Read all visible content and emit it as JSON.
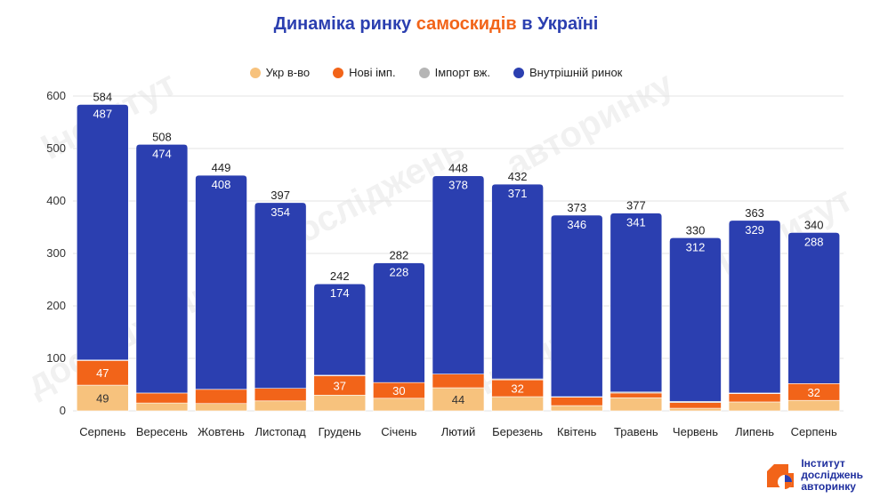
{
  "title": {
    "part1": "Динаміка ринку ",
    "accent": "самоскидів",
    "part2": " в Україні"
  },
  "legend": [
    {
      "label": "Укр в-во",
      "color": "#f7c27d"
    },
    {
      "label": "Нові імп.",
      "color": "#f26419"
    },
    {
      "label": "Імпорт вж.",
      "color": "#b5b5b5"
    },
    {
      "label": "Внутрішній ринок",
      "color": "#2b3fb0"
    }
  ],
  "logo": {
    "line1": "Інститут",
    "line2": "досліджень",
    "line3": "авторинку"
  },
  "chart_data": {
    "type": "bar",
    "stacked": true,
    "categories": [
      "Серпень",
      "Вересень",
      "Жовтень",
      "Листопад",
      "Грудень",
      "Січень",
      "Лютий",
      "Березень",
      "Квітень",
      "Травень",
      "Червень",
      "Липень",
      "Серпень"
    ],
    "series": [
      {
        "name": "Укр в-во",
        "color": "#f7c27d",
        "values": [
          49,
          15,
          14,
          19,
          30,
          24,
          44,
          27,
          10,
          25,
          5,
          17,
          20
        ],
        "labels": [
          "49",
          "",
          "",
          "",
          "",
          "",
          "44",
          "",
          "",
          "",
          "",
          "",
          ""
        ]
      },
      {
        "name": "Нові імп.",
        "color": "#f26419",
        "values": [
          47,
          19,
          27,
          24,
          37,
          30,
          26,
          32,
          16,
          9,
          11,
          16,
          32
        ],
        "labels": [
          "47",
          "",
          "",
          "",
          "37",
          "30",
          "",
          "32",
          "",
          "",
          "",
          "",
          "32"
        ]
      },
      {
        "name": "Імпорт вж.",
        "color": "#b5b5b5",
        "values": [
          1,
          0,
          0,
          0,
          1,
          0,
          0,
          2,
          1,
          2,
          2,
          1,
          0
        ],
        "labels": [
          "",
          "",
          "",
          "",
          "",
          "",
          "",
          "",
          "",
          "",
          "",
          "",
          ""
        ]
      },
      {
        "name": "Внутрішній ринок",
        "color": "#2b3fb0",
        "values": [
          487,
          474,
          408,
          354,
          174,
          228,
          378,
          371,
          346,
          341,
          312,
          329,
          288
        ],
        "labels": [
          "487",
          "474",
          "408",
          "354",
          "174",
          "228",
          "378",
          "371",
          "346",
          "341",
          "312",
          "329",
          "288"
        ]
      }
    ],
    "totals": [
      584,
      508,
      449,
      397,
      242,
      282,
      448,
      432,
      373,
      377,
      330,
      363,
      340
    ],
    "ylim": [
      0,
      600
    ],
    "yticks": [
      0,
      100,
      200,
      300,
      400,
      500,
      600
    ],
    "grid": true,
    "legend_position": "top"
  }
}
